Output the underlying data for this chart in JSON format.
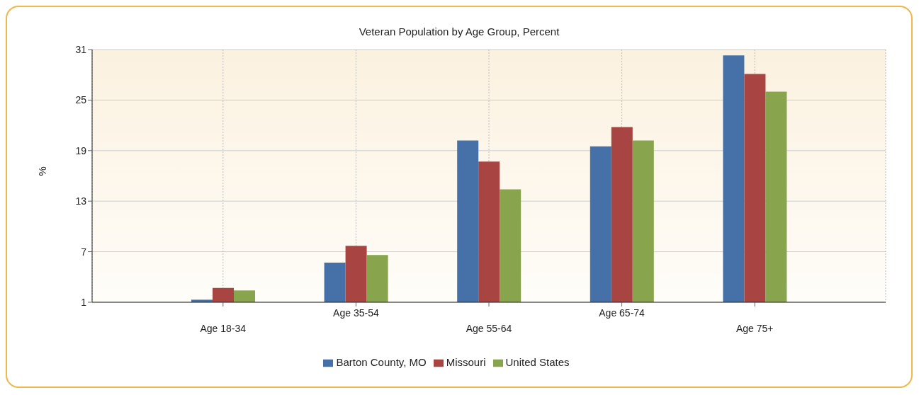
{
  "chart_data": {
    "type": "bar",
    "title": "Veteran Population by Age Group, Percent",
    "ylabel": "%",
    "categories": [
      "Age 18-34",
      "Age 35-54",
      "Age 55-64",
      "Age 65-74",
      "Age 75+"
    ],
    "series": [
      {
        "name": "Barton County, MO",
        "color": "#4571a8",
        "values": [
          1.3,
          5.7,
          20.2,
          19.5,
          30.3
        ]
      },
      {
        "name": "Missouri",
        "color": "#a84543",
        "values": [
          2.7,
          7.7,
          17.7,
          21.8,
          28.1
        ]
      },
      {
        "name": "United States",
        "color": "#88a44c",
        "values": [
          2.4,
          6.6,
          14.4,
          20.2,
          26.0
        ]
      }
    ],
    "ylim": [
      1,
      31
    ],
    "yticks": [
      1,
      7,
      13,
      19,
      25,
      31
    ],
    "grid": true,
    "legend": "bottom"
  }
}
